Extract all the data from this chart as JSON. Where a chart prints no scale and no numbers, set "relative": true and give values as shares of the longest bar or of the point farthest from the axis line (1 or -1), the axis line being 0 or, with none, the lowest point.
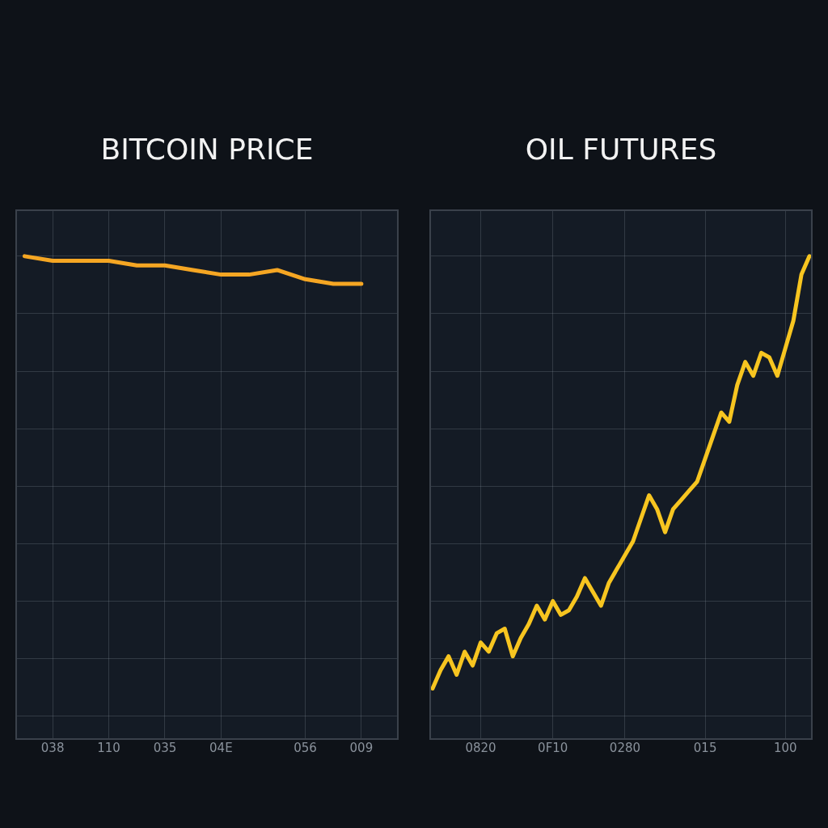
{
  "chart_data": [
    {
      "type": "line",
      "title": "BITCOIN PRICE",
      "relative": true,
      "grid": true,
      "marker": "none",
      "line_style": "solid",
      "categories": [
        null,
        "038",
        null,
        "110",
        null,
        "035",
        null,
        "04E",
        null,
        null,
        "056",
        null,
        "009",
        null
      ],
      "series": [
        {
          "color": "#f5a623",
          "values": [
            1,
            0.99,
            0.99,
            0.99,
            0.98,
            0.98,
            0.97,
            0.96,
            0.96,
            0.97,
            0.95,
            0.94,
            0.94,
            null
          ]
        }
      ]
    },
    {
      "type": "line",
      "title": "OIL FUTURES",
      "relative": true,
      "grid": true,
      "marker": "none",
      "line_style": "solid",
      "categories": [
        null,
        null,
        null,
        null,
        null,
        null,
        "0820",
        null,
        null,
        null,
        null,
        null,
        null,
        null,
        null,
        "0F10",
        null,
        null,
        null,
        null,
        null,
        null,
        null,
        null,
        "0280",
        null,
        null,
        null,
        null,
        null,
        null,
        null,
        null,
        null,
        "015",
        null,
        null,
        null,
        null,
        null,
        null,
        null,
        null,
        null,
        "100",
        null,
        null,
        null
      ],
      "series": [
        {
          "color": "#f7c520",
          "values": [
            0.06,
            0.1,
            0.13,
            0.09,
            0.14,
            0.11,
            0.16,
            0.14,
            0.18,
            0.19,
            0.13,
            0.17,
            0.2,
            0.24,
            0.21,
            0.25,
            0.22,
            0.23,
            0.26,
            0.3,
            0.27,
            0.24,
            0.29,
            0.32,
            0.35,
            0.38,
            0.43,
            0.48,
            0.45,
            0.4,
            0.45,
            0.47,
            0.49,
            0.51,
            0.56,
            0.61,
            0.66,
            0.64,
            0.72,
            0.77,
            0.74,
            0.79,
            0.78,
            0.74,
            0.8,
            0.86,
            0.96,
            1.0
          ]
        }
      ]
    }
  ]
}
